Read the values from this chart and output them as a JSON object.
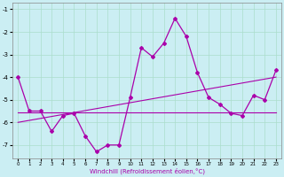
{
  "background_color": "#cbeef3",
  "grid_color": "#aaddcc",
  "line_color": "#aa00aa",
  "xlabel": "Windchill (Refroidissement éolien,°C)",
  "x": [
    0,
    1,
    2,
    3,
    4,
    5,
    6,
    7,
    8,
    9,
    10,
    11,
    12,
    13,
    14,
    15,
    16,
    17,
    18,
    19,
    20,
    21,
    22,
    23
  ],
  "line_main": [
    -4.0,
    -5.5,
    -5.5,
    -6.4,
    -5.7,
    -5.6,
    -6.6,
    -7.3,
    -7.0,
    -7.0,
    -4.9,
    -2.7,
    -3.1,
    -2.5,
    -1.4,
    -2.2,
    -3.8,
    -4.9,
    -5.2,
    -5.6,
    -5.7,
    -4.8,
    -5.0,
    -3.7
  ],
  "trend1_x": [
    0,
    23
  ],
  "trend1_y": [
    -5.55,
    -5.55
  ],
  "trend2_x": [
    0,
    23
  ],
  "trend2_y": [
    -6.0,
    -4.0
  ],
  "ylim": [
    -7.6,
    -0.7
  ],
  "xlim": [
    -0.5,
    23.5
  ],
  "yticks": [
    -7,
    -6,
    -5,
    -4,
    -3,
    -2,
    -1
  ],
  "xticks": [
    0,
    1,
    2,
    3,
    4,
    5,
    6,
    7,
    8,
    9,
    10,
    11,
    12,
    13,
    14,
    15,
    16,
    17,
    18,
    19,
    20,
    21,
    22,
    23
  ],
  "figsize": [
    3.2,
    2.0
  ],
  "dpi": 100
}
